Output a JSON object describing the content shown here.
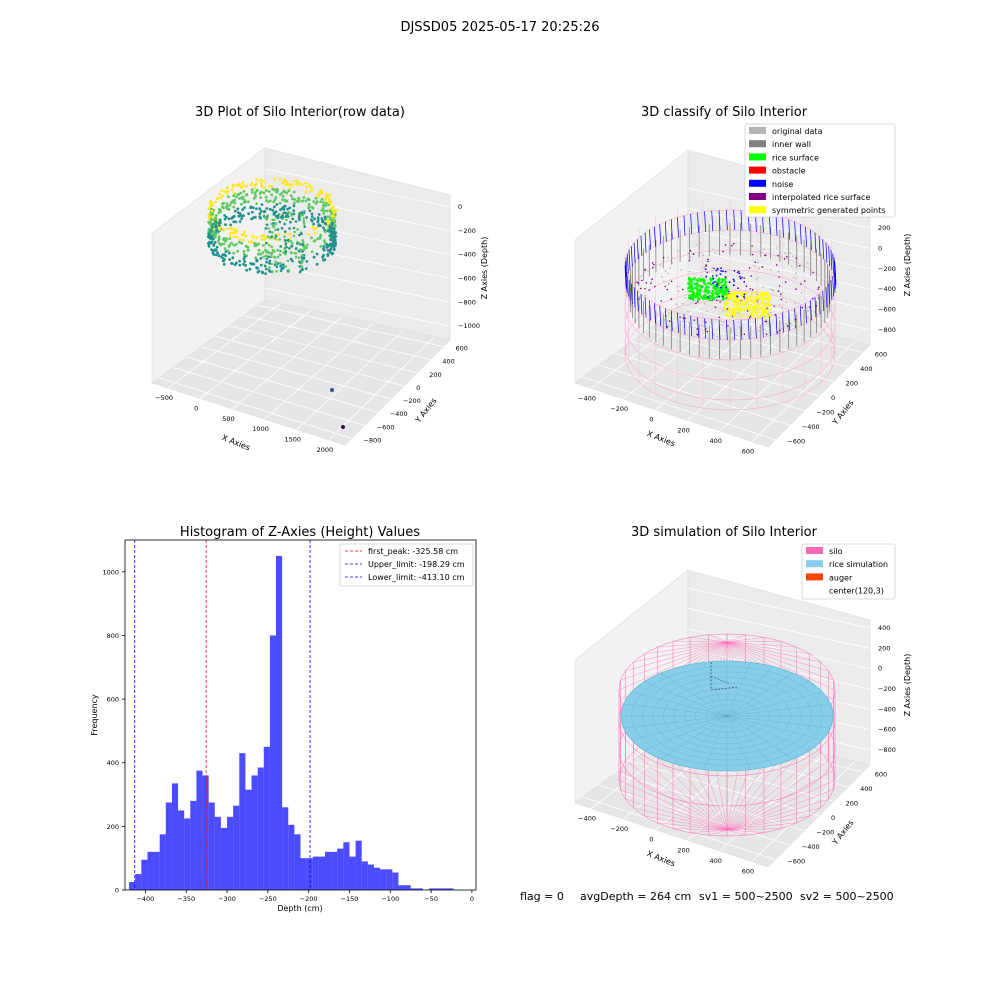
{
  "figure": {
    "suptitle": "DJSSD05 2025-05-17 20:25:26",
    "footer": {
      "flag": "flag = 0",
      "avg": "avgDepth = 264 cm",
      "sv1": "sv1 = 500~2500",
      "sv2": "sv2 = 500~2500"
    }
  },
  "raw_plot": {
    "title": "3D Plot of Silo Interior(row data)",
    "xlabel": "X Axies",
    "ylabel": "Y Axies",
    "zlabel": "Z Axies (Depth)",
    "xticks": [
      "−500",
      "0",
      "500",
      "1000",
      "1500",
      "2000"
    ],
    "yticks": [
      "−800",
      "−600",
      "−400",
      "−200",
      "0",
      "200",
      "400",
      "600"
    ],
    "zticks": [
      "−1000",
      "−800",
      "−600",
      "−400",
      "−200",
      "0"
    ],
    "colormap": [
      "#440154",
      "#21918c",
      "#5ec962",
      "#fde725"
    ]
  },
  "classify_plot": {
    "title": "3D classify of Silo Interior",
    "xlabel": "X Axies",
    "ylabel": "Y Axies",
    "zlabel": "Z Axies (Depth)",
    "xticks": [
      "−400",
      "−200",
      "0",
      "200",
      "400",
      "600"
    ],
    "yticks": [
      "−600",
      "−400",
      "−200",
      "0",
      "200",
      "400",
      "600"
    ],
    "zticks": [
      "−800",
      "−600",
      "−400",
      "−200",
      "0",
      "200"
    ],
    "legend": [
      {
        "label": "original data",
        "color": "#b4b4b4"
      },
      {
        "label": "inner wall",
        "color": "#808080"
      },
      {
        "label": "rice surface",
        "color": "#00ff00"
      },
      {
        "label": "obstacle",
        "color": "#ff0000"
      },
      {
        "label": "noise",
        "color": "#0000ff"
      },
      {
        "label": "interpolated rice surface",
        "color": "#800080"
      },
      {
        "label": "symmetric generated points",
        "color": "#ffff00"
      }
    ]
  },
  "chart_data": [
    {
      "type": "bar",
      "title": "Histogram of Z-Axies (Height) Values",
      "xlabel": "Depth (cm)",
      "ylabel": "Frequency",
      "xlim": [
        -425,
        5
      ],
      "ylim": [
        0,
        1100
      ],
      "xticks": [
        -400,
        -350,
        -300,
        -250,
        -200,
        -150,
        -100,
        -50,
        0
      ],
      "yticks": [
        0,
        200,
        400,
        600,
        800,
        1000
      ],
      "bin_start": -420,
      "bin_width": 7.5,
      "values": [
        25,
        50,
        95,
        120,
        120,
        175,
        275,
        335,
        250,
        225,
        280,
        375,
        360,
        275,
        230,
        195,
        230,
        265,
        430,
        315,
        360,
        385,
        450,
        800,
        1050,
        260,
        205,
        175,
        100,
        100,
        105,
        105,
        120,
        120,
        130,
        150,
        105,
        155,
        90,
        80,
        70,
        65,
        65,
        55,
        15,
        15,
        5,
        5,
        0,
        5,
        5,
        5,
        5
      ],
      "color": "#0000ff",
      "vlines": [
        {
          "label": "first_peak: -325.58 cm",
          "x": -325.58,
          "color": "#ff0000"
        },
        {
          "label": "Upper_limit: -198.29 cm",
          "x": -198.29,
          "color": "#0000ff"
        },
        {
          "label": "Lower_limit: -413.10 cm",
          "x": -413.1,
          "color": "#0000ff"
        }
      ],
      "legend_position": "upper right",
      "grid": false
    }
  ],
  "simulation_plot": {
    "title": "3D simulation of Silo Interior",
    "xlabel": "X Axies",
    "ylabel": "Y Axies",
    "zlabel": "Z Axies (Depth)",
    "xticks": [
      "−400",
      "−200",
      "0",
      "200",
      "400",
      "600"
    ],
    "yticks": [
      "−600",
      "−400",
      "−200",
      "0",
      "200",
      "400",
      "600"
    ],
    "zticks": [
      "−800",
      "−600",
      "−400",
      "−200",
      "0",
      "200",
      "400"
    ],
    "legend": [
      {
        "label": "silo",
        "color": "#ff69b4"
      },
      {
        "label": "rice simulation",
        "color": "#87ceeb"
      },
      {
        "label": "auger",
        "color": "#ff4500"
      },
      {
        "label": "center(120,3)",
        "color": "#ffffff"
      }
    ]
  }
}
